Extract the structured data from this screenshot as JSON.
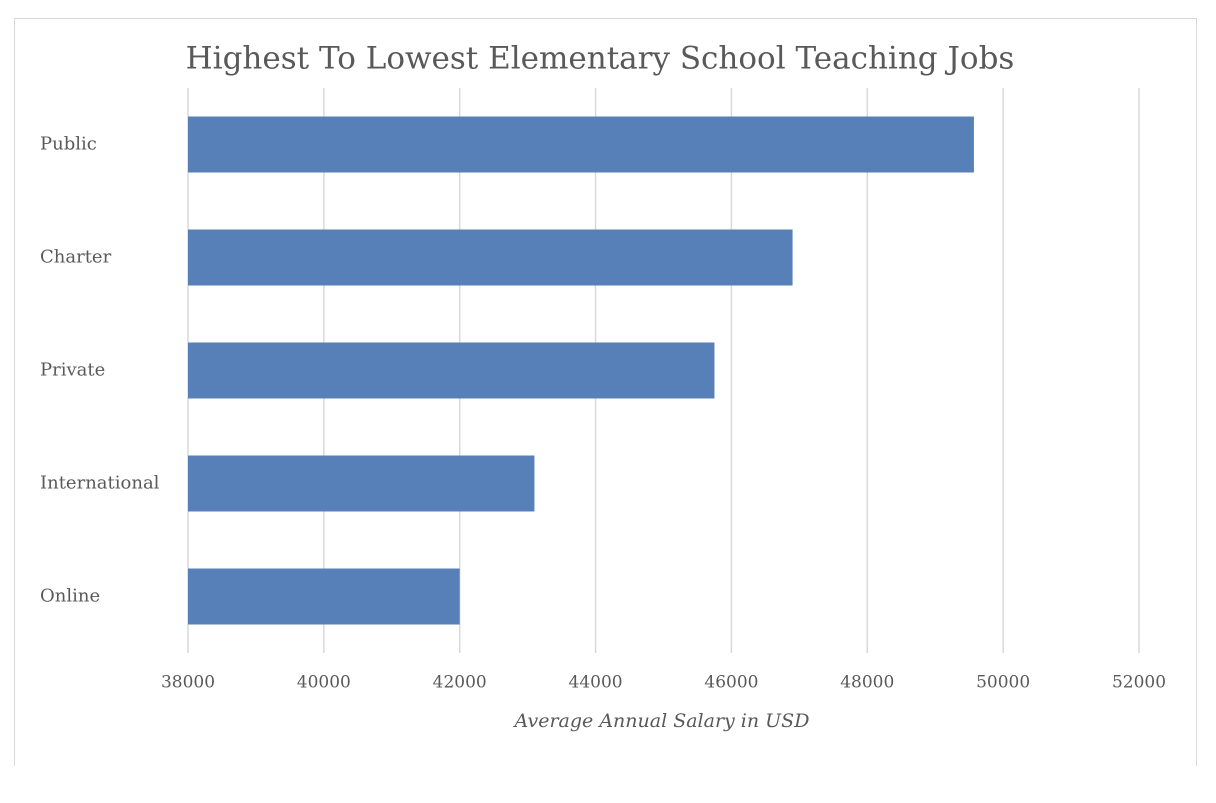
{
  "chart_data": {
    "type": "bar",
    "orientation": "horizontal",
    "title": "Highest To Lowest Elementary School Teaching Jobs",
    "x_label": "Average Annual Salary in USD",
    "categories": [
      "Public",
      "Charter",
      "Private",
      "International",
      "Online"
    ],
    "values": [
      49570,
      46900,
      45750,
      43100,
      42000
    ],
    "color": "#5880b8",
    "xlim": [
      38000,
      52000
    ],
    "xticks": [
      38000,
      40000,
      42000,
      44000,
      46000,
      48000,
      50000,
      52000
    ],
    "grid": true
  }
}
